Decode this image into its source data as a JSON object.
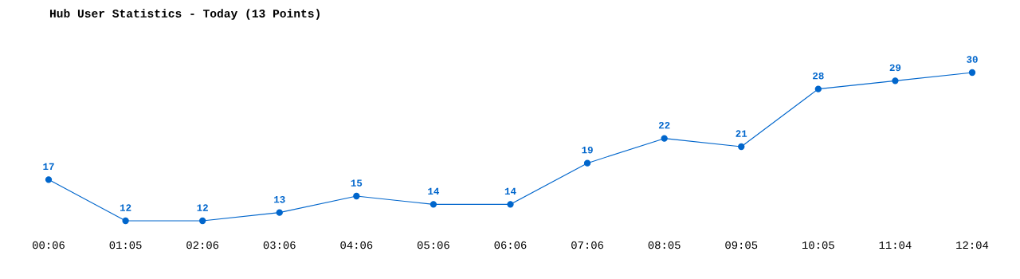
{
  "chart_data": {
    "type": "line",
    "title": "Hub User Statistics - Today (13 Points)",
    "categories": [
      "00:06",
      "01:05",
      "02:06",
      "03:06",
      "04:06",
      "05:06",
      "06:06",
      "07:06",
      "08:05",
      "09:05",
      "10:05",
      "11:04",
      "12:04"
    ],
    "series": [
      {
        "color": "#0066cc",
        "values": [
          17,
          12,
          12,
          13,
          15,
          14,
          14,
          19,
          22,
          21,
          28,
          29,
          30
        ]
      }
    ],
    "data_labels": true,
    "marker": "circle",
    "line_style": "solid",
    "grid": false,
    "legend": false,
    "tick_labels": "x"
  }
}
